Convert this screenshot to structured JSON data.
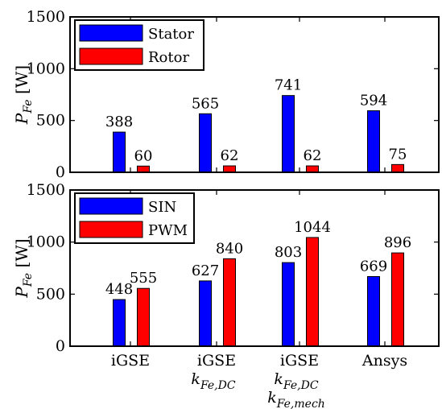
{
  "chart_data": [
    {
      "type": "bar",
      "ylabel": "P_Fe [W]",
      "ylabel_main": "P",
      "ylabel_sub": "Fe",
      "ylabel_unit": "[W]",
      "ylim": [
        0,
        1500
      ],
      "yticks": [
        0,
        500,
        1000,
        1500
      ],
      "grid": false,
      "legend_position": "top-left",
      "categories": [
        "iGSE",
        "iGSE k_Fe,DC",
        "iGSE k_Fe,DC k_Fe,mech",
        "Ansys"
      ],
      "series": [
        {
          "name": "Stator",
          "color": "#0000ff",
          "values": [
            388,
            565,
            741,
            594
          ]
        },
        {
          "name": "Rotor",
          "color": "#ff0000",
          "values": [
            60,
            62,
            62,
            75
          ]
        }
      ]
    },
    {
      "type": "bar",
      "ylabel": "P_Fe [W]",
      "ylabel_main": "P",
      "ylabel_sub": "Fe",
      "ylabel_unit": "[W]",
      "ylim": [
        0,
        1500
      ],
      "yticks": [
        0,
        500,
        1000,
        1500
      ],
      "grid": false,
      "legend_position": "top-left",
      "categories": [
        "iGSE",
        "iGSE k_Fe,DC",
        "iGSE k_Fe,DC k_Fe,mech",
        "Ansys"
      ],
      "series": [
        {
          "name": "SIN",
          "color": "#0000ff",
          "values": [
            448,
            627,
            803,
            669
          ]
        },
        {
          "name": "PWM",
          "color": "#ff0000",
          "values": [
            555,
            840,
            1044,
            896
          ]
        }
      ]
    }
  ],
  "x_axis": {
    "categories": [
      {
        "lines": [
          {
            "text": "iGSE"
          }
        ]
      },
      {
        "lines": [
          {
            "text": "iGSE"
          },
          {
            "main": "k",
            "sub": "Fe,DC"
          }
        ]
      },
      {
        "lines": [
          {
            "text": "iGSE"
          },
          {
            "main": "k",
            "sub": "Fe,DC"
          },
          {
            "main": "k",
            "sub": "Fe,mech"
          }
        ]
      },
      {
        "lines": [
          {
            "text": "Ansys"
          }
        ]
      }
    ]
  }
}
